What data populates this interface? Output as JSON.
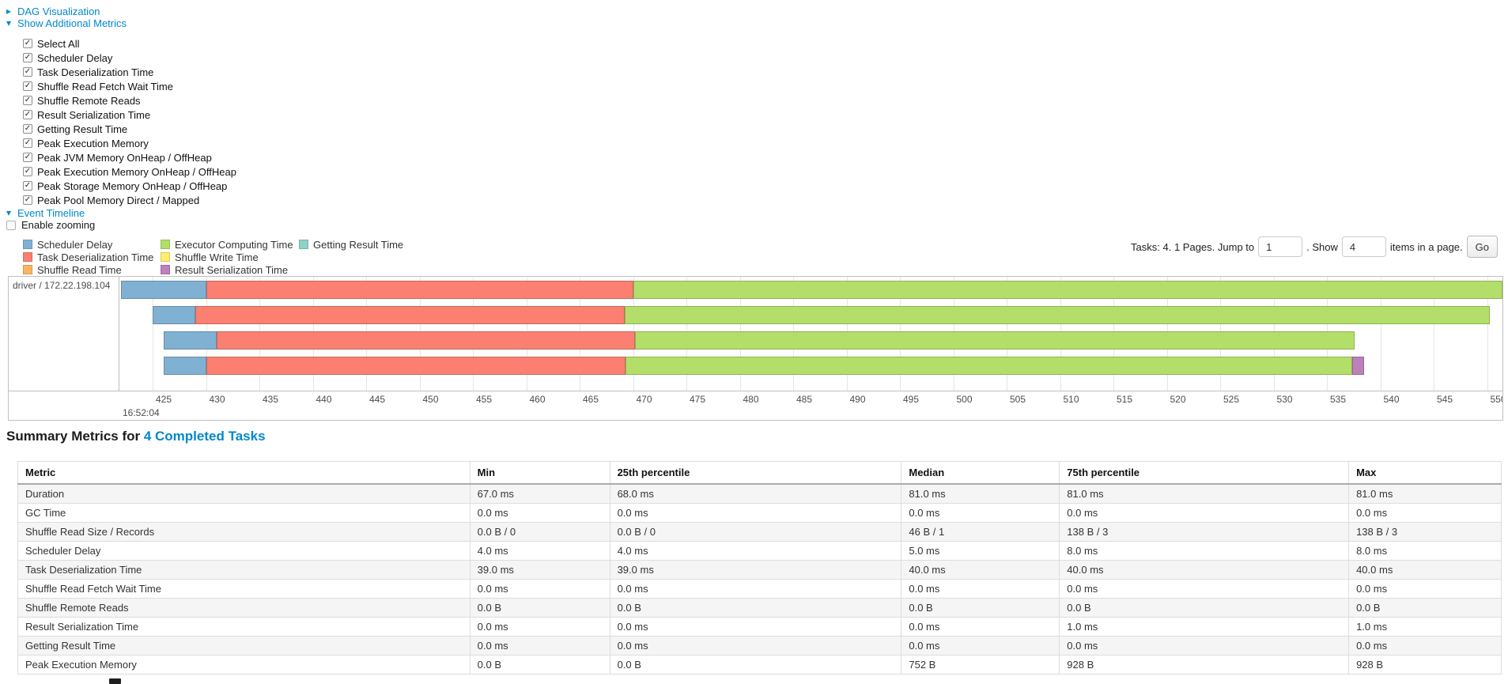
{
  "toggles": {
    "dag": "DAG Visualization",
    "metrics": "Show Additional Metrics",
    "timeline": "Event Timeline"
  },
  "checkboxes": {
    "items": [
      "Select All",
      "Scheduler Delay",
      "Task Deserialization Time",
      "Shuffle Read Fetch Wait Time",
      "Shuffle Remote Reads",
      "Result Serialization Time",
      "Getting Result Time",
      "Peak Execution Memory",
      "Peak JVM Memory OnHeap / OffHeap",
      "Peak Execution Memory OnHeap / OffHeap",
      "Peak Storage Memory OnHeap / OffHeap",
      "Peak Pool Memory Direct / Mapped"
    ],
    "all_checked": true
  },
  "zoom_control": {
    "label": "Enable zooming",
    "checked": false
  },
  "legend": {
    "columns": [
      [
        {
          "label": "Scheduler Delay",
          "color": "#80B1D3"
        },
        {
          "label": "Task Deserialization Time",
          "color": "#FB8072"
        },
        {
          "label": "Shuffle Read Time",
          "color": "#FDB462"
        }
      ],
      [
        {
          "label": "Executor Computing Time",
          "color": "#B3DE69"
        },
        {
          "label": "Shuffle Write Time",
          "color": "#FFED6F"
        },
        {
          "label": "Result Serialization Time",
          "color": "#BC80BD"
        }
      ],
      [
        {
          "label": "Getting Result Time",
          "color": "#8DD3C7"
        }
      ]
    ]
  },
  "pagination": {
    "info": "Tasks: 4. 1 Pages. Jump to",
    "jump_value": "1",
    "mid": ". Show",
    "page_size_value": "4",
    "suffix": "items in a page.",
    "go": "Go"
  },
  "chart_data": {
    "type": "timeline",
    "title": "Event Timeline",
    "x_axis": {
      "unit": "ms",
      "major_label": "16:52:04",
      "tick_start": 425,
      "tick_end": 550,
      "tick_step": 5,
      "window_start": 421.9,
      "window_end": 551.4
    },
    "rows": [
      {
        "label": "driver / 172.22.198.104",
        "segments": [
          {
            "metric": "Scheduler Delay",
            "start": 422.0,
            "end": 430.0
          },
          {
            "metric": "Task Deserialization Time",
            "start": 430.0,
            "end": 470.0
          },
          {
            "metric": "Executor Computing Time",
            "start": 470.0,
            "end": 551.6
          }
        ]
      },
      {
        "label": "",
        "segments": [
          {
            "metric": "Scheduler Delay",
            "start": 425.0,
            "end": 429.0
          },
          {
            "metric": "Task Deserialization Time",
            "start": 429.0,
            "end": 469.2
          },
          {
            "metric": "Executor Computing Time",
            "start": 469.2,
            "end": 550.3
          }
        ]
      },
      {
        "label": "",
        "segments": [
          {
            "metric": "Scheduler Delay",
            "start": 426.0,
            "end": 431.0
          },
          {
            "metric": "Task Deserialization Time",
            "start": 431.0,
            "end": 470.2
          },
          {
            "metric": "Executor Computing Time",
            "start": 470.2,
            "end": 537.6
          }
        ]
      },
      {
        "label": "",
        "segments": [
          {
            "metric": "Scheduler Delay",
            "start": 426.0,
            "end": 430.0
          },
          {
            "metric": "Task Deserialization Time",
            "start": 430.0,
            "end": 469.3
          },
          {
            "metric": "Executor Computing Time",
            "start": 469.3,
            "end": 537.4
          },
          {
            "metric": "Result Serialization Time",
            "start": 537.4,
            "end": 538.5
          }
        ]
      }
    ]
  },
  "summary": {
    "heading_prefix": "Summary Metrics for ",
    "heading_link": "4 Completed Tasks",
    "table": {
      "headers": [
        "Metric",
        "Min",
        "25th percentile",
        "Median",
        "75th percentile",
        "Max"
      ],
      "rows": [
        [
          "Duration",
          "67.0 ms",
          "68.0 ms",
          "81.0 ms",
          "81.0 ms",
          "81.0 ms"
        ],
        [
          "GC Time",
          "0.0 ms",
          "0.0 ms",
          "0.0 ms",
          "0.0 ms",
          "0.0 ms"
        ],
        [
          "Shuffle Read Size / Records",
          "0.0 B / 0",
          "0.0 B / 0",
          "46 B / 1",
          "138 B / 3",
          "138 B / 3"
        ],
        [
          "Scheduler Delay",
          "4.0 ms",
          "4.0 ms",
          "5.0 ms",
          "8.0 ms",
          "8.0 ms"
        ],
        [
          "Task Deserialization Time",
          "39.0 ms",
          "39.0 ms",
          "40.0 ms",
          "40.0 ms",
          "40.0 ms"
        ],
        [
          "Shuffle Read Fetch Wait Time",
          "0.0 ms",
          "0.0 ms",
          "0.0 ms",
          "0.0 ms",
          "0.0 ms"
        ],
        [
          "Shuffle Remote Reads",
          "0.0 B",
          "0.0 B",
          "0.0 B",
          "0.0 B",
          "0.0 B"
        ],
        [
          "Result Serialization Time",
          "0.0 ms",
          "0.0 ms",
          "0.0 ms",
          "1.0 ms",
          "1.0 ms"
        ],
        [
          "Getting Result Time",
          "0.0 ms",
          "0.0 ms",
          "0.0 ms",
          "0.0 ms",
          "0.0 ms"
        ],
        [
          "Peak Execution Memory",
          "0.0 B",
          "0.0 B",
          "752 B",
          "928 B",
          "928 B"
        ]
      ]
    }
  }
}
